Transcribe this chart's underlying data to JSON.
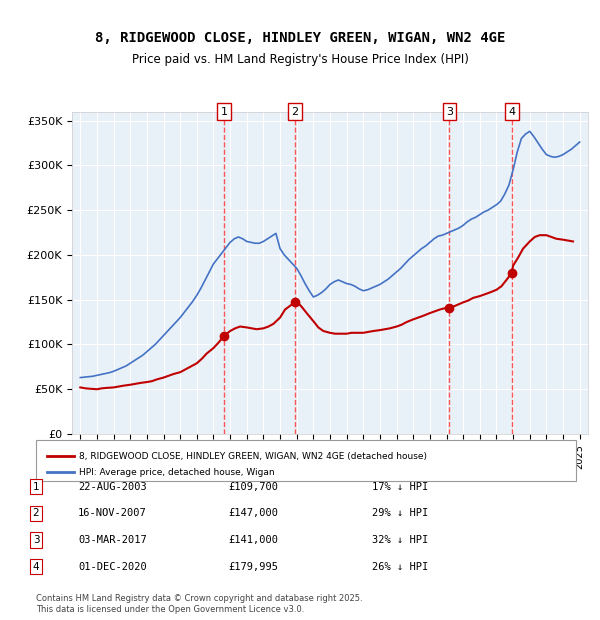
{
  "title": "8, RIDGEWOOD CLOSE, HINDLEY GREEN, WIGAN, WN2 4GE",
  "subtitle": "Price paid vs. HM Land Registry's House Price Index (HPI)",
  "background_color": "#ffffff",
  "plot_bg_color": "#e8f0f8",
  "grid_color": "#ffffff",
  "ylim": [
    0,
    360000
  ],
  "yticks": [
    0,
    50000,
    100000,
    150000,
    200000,
    250000,
    300000,
    350000
  ],
  "ytick_labels": [
    "£0",
    "£50K",
    "£100K",
    "£150K",
    "£200K",
    "£250K",
    "£300K",
    "£350K"
  ],
  "xlim_start": 1994.5,
  "xlim_end": 2025.5,
  "xticks": [
    1995,
    1996,
    1997,
    1998,
    1999,
    2000,
    2001,
    2002,
    2003,
    2004,
    2005,
    2006,
    2007,
    2008,
    2009,
    2010,
    2011,
    2012,
    2013,
    2014,
    2015,
    2016,
    2017,
    2018,
    2019,
    2020,
    2021,
    2022,
    2023,
    2024,
    2025
  ],
  "hpi_color": "#4472c4",
  "price_color": "#c00000",
  "sale_marker_color": "#c00000",
  "vline_color": "#ff4444",
  "transactions": [
    {
      "num": 1,
      "date_label": "22-AUG-2003",
      "year": 2003.64,
      "price": 109700,
      "pct": "17%",
      "dir": "↓"
    },
    {
      "num": 2,
      "date_label": "16-NOV-2007",
      "year": 2007.88,
      "price": 147000,
      "pct": "29%",
      "dir": "↓"
    },
    {
      "num": 3,
      "date_label": "03-MAR-2017",
      "year": 2017.17,
      "price": 141000,
      "pct": "32%",
      "dir": "↓"
    },
    {
      "num": 4,
      "date_label": "01-DEC-2020",
      "year": 2020.92,
      "price": 179995,
      "pct": "26%",
      "dir": "↓"
    }
  ],
  "legend_price_label": "8, RIDGEWOOD CLOSE, HINDLEY GREEN, WIGAN, WN2 4GE (detached house)",
  "legend_hpi_label": "HPI: Average price, detached house, Wigan",
  "footer": "Contains HM Land Registry data © Crown copyright and database right 2025.\nThis data is licensed under the Open Government Licence v3.0.",
  "hpi_data_x": [
    1995.0,
    1995.25,
    1995.5,
    1995.75,
    1996.0,
    1996.25,
    1996.5,
    1996.75,
    1997.0,
    1997.25,
    1997.5,
    1997.75,
    1998.0,
    1998.25,
    1998.5,
    1998.75,
    1999.0,
    1999.25,
    1999.5,
    1999.75,
    2000.0,
    2000.25,
    2000.5,
    2000.75,
    2001.0,
    2001.25,
    2001.5,
    2001.75,
    2002.0,
    2002.25,
    2002.5,
    2002.75,
    2003.0,
    2003.25,
    2003.5,
    2003.75,
    2004.0,
    2004.25,
    2004.5,
    2004.75,
    2005.0,
    2005.25,
    2005.5,
    2005.75,
    2006.0,
    2006.25,
    2006.5,
    2006.75,
    2007.0,
    2007.25,
    2007.5,
    2007.75,
    2008.0,
    2008.25,
    2008.5,
    2008.75,
    2009.0,
    2009.25,
    2009.5,
    2009.75,
    2010.0,
    2010.25,
    2010.5,
    2010.75,
    2011.0,
    2011.25,
    2011.5,
    2011.75,
    2012.0,
    2012.25,
    2012.5,
    2012.75,
    2013.0,
    2013.25,
    2013.5,
    2013.75,
    2014.0,
    2014.25,
    2014.5,
    2014.75,
    2015.0,
    2015.25,
    2015.5,
    2015.75,
    2016.0,
    2016.25,
    2016.5,
    2016.75,
    2017.0,
    2017.25,
    2017.5,
    2017.75,
    2018.0,
    2018.25,
    2018.5,
    2018.75,
    2019.0,
    2019.25,
    2019.5,
    2019.75,
    2020.0,
    2020.25,
    2020.5,
    2020.75,
    2021.0,
    2021.25,
    2021.5,
    2021.75,
    2022.0,
    2022.25,
    2022.5,
    2022.75,
    2023.0,
    2023.25,
    2023.5,
    2023.75,
    2024.0,
    2024.25,
    2024.5,
    2024.75,
    2025.0
  ],
  "hpi_data_y": [
    63000,
    63500,
    64000,
    64500,
    65500,
    66500,
    67500,
    68500,
    70000,
    72000,
    74000,
    76000,
    79000,
    82000,
    85000,
    88000,
    92000,
    96000,
    100000,
    105000,
    110000,
    115000,
    120000,
    125000,
    130000,
    136000,
    142000,
    148000,
    155000,
    163000,
    172000,
    181000,
    190000,
    196000,
    202000,
    208000,
    214000,
    218000,
    220000,
    218000,
    215000,
    214000,
    213000,
    213000,
    215000,
    218000,
    221000,
    224000,
    207000,
    200000,
    195000,
    190000,
    185000,
    177000,
    168000,
    160000,
    153000,
    155000,
    158000,
    162000,
    167000,
    170000,
    172000,
    170000,
    168000,
    167000,
    165000,
    162000,
    160000,
    161000,
    163000,
    165000,
    167000,
    170000,
    173000,
    177000,
    181000,
    185000,
    190000,
    195000,
    199000,
    203000,
    207000,
    210000,
    214000,
    218000,
    221000,
    222000,
    224000,
    226000,
    228000,
    230000,
    233000,
    237000,
    240000,
    242000,
    245000,
    248000,
    250000,
    253000,
    256000,
    260000,
    268000,
    278000,
    295000,
    315000,
    330000,
    335000,
    338000,
    332000,
    325000,
    318000,
    312000,
    310000,
    309000,
    310000,
    312000,
    315000,
    318000,
    322000,
    326000
  ],
  "price_data_x": [
    1995.0,
    1995.3,
    1995.6,
    1996.0,
    1996.3,
    1996.6,
    1997.0,
    1997.3,
    1997.6,
    1998.0,
    1998.3,
    1998.6,
    1999.0,
    1999.3,
    1999.6,
    2000.0,
    2000.3,
    2000.6,
    2001.0,
    2001.3,
    2001.6,
    2002.0,
    2002.3,
    2002.6,
    2003.0,
    2003.3,
    2003.64,
    2004.0,
    2004.3,
    2004.6,
    2005.0,
    2005.3,
    2005.6,
    2006.0,
    2006.3,
    2006.6,
    2007.0,
    2007.3,
    2007.88,
    2008.0,
    2008.3,
    2008.6,
    2009.0,
    2009.3,
    2009.6,
    2010.0,
    2010.3,
    2010.6,
    2011.0,
    2011.3,
    2011.6,
    2012.0,
    2012.3,
    2012.6,
    2013.0,
    2013.3,
    2013.6,
    2014.0,
    2014.3,
    2014.6,
    2015.0,
    2015.3,
    2015.6,
    2016.0,
    2016.3,
    2016.6,
    2017.0,
    2017.17,
    2017.5,
    2017.75,
    2018.0,
    2018.3,
    2018.6,
    2019.0,
    2019.3,
    2019.6,
    2020.0,
    2020.3,
    2020.6,
    2020.92,
    2021.0,
    2021.3,
    2021.6,
    2022.0,
    2022.3,
    2022.6,
    2023.0,
    2023.3,
    2023.6,
    2024.0,
    2024.3,
    2024.6
  ],
  "price_data_y": [
    52000,
    51000,
    50500,
    50000,
    51000,
    51500,
    52000,
    53000,
    54000,
    55000,
    56000,
    57000,
    58000,
    59000,
    61000,
    63000,
    65000,
    67000,
    69000,
    72000,
    75000,
    79000,
    84000,
    90000,
    96000,
    102000,
    109700,
    115000,
    118000,
    120000,
    119000,
    118000,
    117000,
    118000,
    120000,
    123000,
    130000,
    139000,
    147000,
    148000,
    142000,
    135000,
    126000,
    119000,
    115000,
    113000,
    112000,
    112000,
    112000,
    113000,
    113000,
    113000,
    114000,
    115000,
    116000,
    117000,
    118000,
    120000,
    122000,
    125000,
    128000,
    130000,
    132000,
    135000,
    137000,
    139000,
    141000,
    141000,
    143000,
    145000,
    147000,
    149000,
    152000,
    154000,
    156000,
    158000,
    161000,
    165000,
    172000,
    179995,
    188000,
    197000,
    207000,
    215000,
    220000,
    222000,
    222000,
    220000,
    218000,
    217000,
    216000,
    215000
  ]
}
